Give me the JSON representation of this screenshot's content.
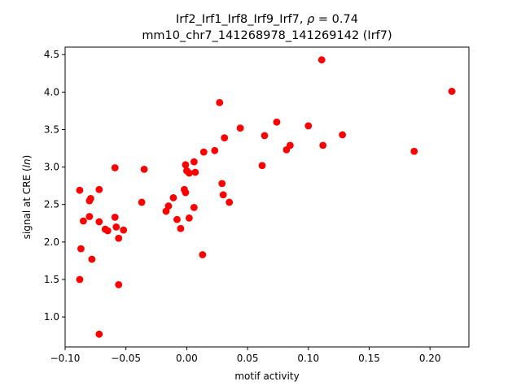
{
  "chart_data": {
    "type": "scatter",
    "title_line1_prefix": "Irf2_Irf1_Irf8_Irf9_Irf7, ",
    "title_line1_rho": "ρ",
    "title_line1_suffix": " = 0.74",
    "title_line2": "mm10_chr7_141268978_141269142 (Irf7)",
    "xlabel": "motif activity",
    "ylabel_prefix": "signal at CRE (",
    "ylabel_italic": "ln",
    "ylabel_suffix": ")",
    "xlim": [
      -0.1,
      0.232
    ],
    "ylim": [
      0.6,
      4.6
    ],
    "xticks": [
      -0.1,
      -0.05,
      0.0,
      0.05,
      0.1,
      0.15,
      0.2
    ],
    "xtick_labels": [
      "−0.10",
      "−0.05",
      "0.00",
      "0.05",
      "0.10",
      "0.15",
      "0.20"
    ],
    "yticks": [
      1.0,
      1.5,
      2.0,
      2.5,
      3.0,
      3.5,
      4.0,
      4.5
    ],
    "ytick_labels": [
      "1.0",
      "1.5",
      "2.0",
      "2.5",
      "3.0",
      "3.5",
      "4.0",
      "4.5"
    ],
    "grid": false,
    "marker_color": "#ff0000",
    "points": [
      [
        -0.088,
        2.69
      ],
      [
        -0.087,
        1.91
      ],
      [
        -0.088,
        1.5
      ],
      [
        -0.085,
        2.28
      ],
      [
        -0.08,
        2.55
      ],
      [
        -0.079,
        2.58
      ],
      [
        -0.08,
        2.34
      ],
      [
        -0.078,
        1.77
      ],
      [
        -0.072,
        2.7
      ],
      [
        -0.072,
        2.27
      ],
      [
        -0.072,
        0.77
      ],
      [
        -0.067,
        2.17
      ],
      [
        -0.065,
        2.15
      ],
      [
        -0.059,
        2.99
      ],
      [
        -0.059,
        2.33
      ],
      [
        -0.058,
        2.2
      ],
      [
        -0.056,
        2.05
      ],
      [
        -0.056,
        1.43
      ],
      [
        -0.052,
        2.16
      ],
      [
        -0.037,
        2.53
      ],
      [
        -0.035,
        2.97
      ],
      [
        -0.017,
        2.41
      ],
      [
        -0.015,
        2.48
      ],
      [
        -0.011,
        2.59
      ],
      [
        -0.008,
        2.3
      ],
      [
        -0.005,
        2.18
      ],
      [
        -0.002,
        2.7
      ],
      [
        -0.001,
        3.03
      ],
      [
        -0.001,
        2.66
      ],
      [
        0.0,
        2.95
      ],
      [
        0.002,
        2.92
      ],
      [
        0.002,
        2.32
      ],
      [
        0.006,
        3.07
      ],
      [
        0.006,
        2.46
      ],
      [
        0.007,
        2.93
      ],
      [
        0.013,
        1.83
      ],
      [
        0.014,
        3.2
      ],
      [
        0.023,
        3.22
      ],
      [
        0.027,
        3.86
      ],
      [
        0.029,
        2.78
      ],
      [
        0.03,
        2.63
      ],
      [
        0.031,
        3.39
      ],
      [
        0.035,
        2.53
      ],
      [
        0.044,
        3.52
      ],
      [
        0.062,
        3.02
      ],
      [
        0.064,
        3.42
      ],
      [
        0.074,
        3.6
      ],
      [
        0.082,
        3.23
      ],
      [
        0.085,
        3.29
      ],
      [
        0.1,
        3.55
      ],
      [
        0.111,
        4.43
      ],
      [
        0.112,
        3.29
      ],
      [
        0.128,
        3.43
      ],
      [
        0.187,
        3.21
      ],
      [
        0.218,
        4.01
      ]
    ]
  }
}
